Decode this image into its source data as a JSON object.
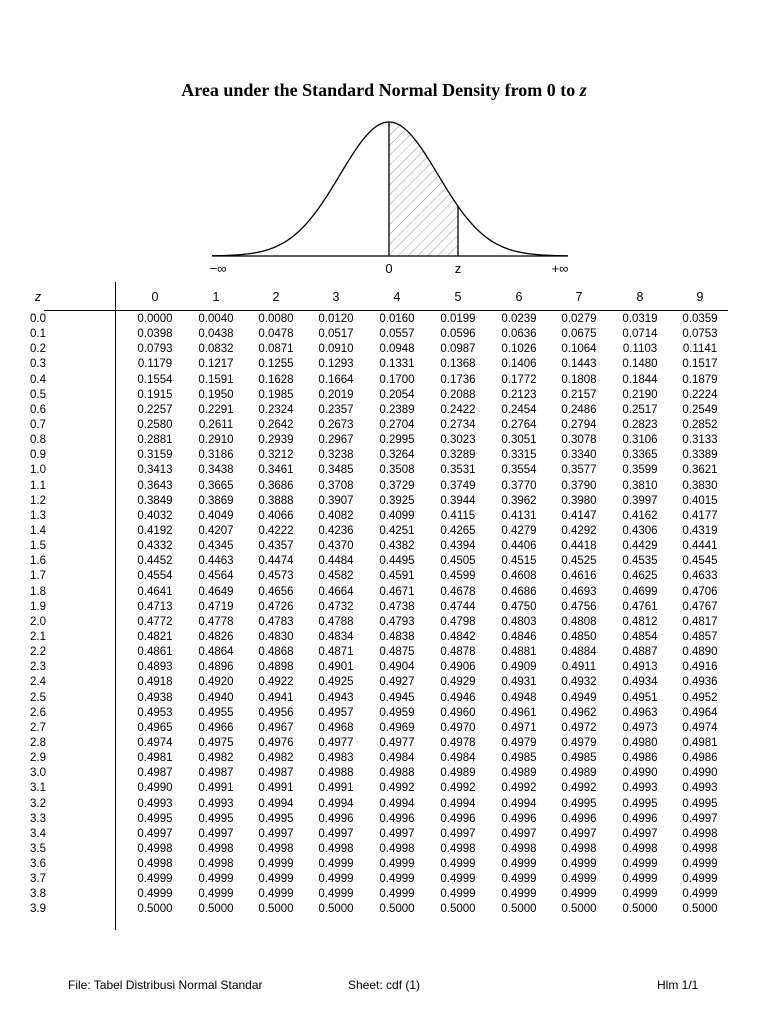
{
  "title": {
    "text": "Area under the Standard Normal Density from 0 to ",
    "var": "z"
  },
  "figure": {
    "labels": {
      "neg_inf": "−∞",
      "zero": "0",
      "z": "z",
      "pos_inf": "+∞"
    }
  },
  "table": {
    "z_header": "z",
    "columns": [
      "0",
      "1",
      "2",
      "3",
      "4",
      "5",
      "6",
      "7",
      "8",
      "9"
    ],
    "rows": [
      {
        "z": "0.0",
        "v": [
          "0.0000",
          "0.0040",
          "0.0080",
          "0.0120",
          "0.0160",
          "0.0199",
          "0.0239",
          "0.0279",
          "0.0319",
          "0.0359"
        ]
      },
      {
        "z": "0.1",
        "v": [
          "0.0398",
          "0.0438",
          "0.0478",
          "0.0517",
          "0.0557",
          "0.0596",
          "0.0636",
          "0.0675",
          "0.0714",
          "0.0753"
        ]
      },
      {
        "z": "0.2",
        "v": [
          "0.0793",
          "0.0832",
          "0.0871",
          "0.0910",
          "0.0948",
          "0.0987",
          "0.1026",
          "0.1064",
          "0.1103",
          "0.1141"
        ]
      },
      {
        "z": "0.3",
        "v": [
          "0.1179",
          "0.1217",
          "0.1255",
          "0.1293",
          "0.1331",
          "0.1368",
          "0.1406",
          "0.1443",
          "0.1480",
          "0.1517"
        ]
      },
      {
        "z": "0.4",
        "v": [
          "0.1554",
          "0.1591",
          "0.1628",
          "0.1664",
          "0.1700",
          "0.1736",
          "0.1772",
          "0.1808",
          "0.1844",
          "0.1879"
        ]
      },
      {
        "z": "0.5",
        "v": [
          "0.1915",
          "0.1950",
          "0.1985",
          "0.2019",
          "0.2054",
          "0.2088",
          "0.2123",
          "0.2157",
          "0.2190",
          "0.2224"
        ]
      },
      {
        "z": "0.6",
        "v": [
          "0.2257",
          "0.2291",
          "0.2324",
          "0.2357",
          "0.2389",
          "0.2422",
          "0.2454",
          "0.2486",
          "0.2517",
          "0.2549"
        ]
      },
      {
        "z": "0.7",
        "v": [
          "0.2580",
          "0.2611",
          "0.2642",
          "0.2673",
          "0.2704",
          "0.2734",
          "0.2764",
          "0.2794",
          "0.2823",
          "0.2852"
        ]
      },
      {
        "z": "0.8",
        "v": [
          "0.2881",
          "0.2910",
          "0.2939",
          "0.2967",
          "0.2995",
          "0.3023",
          "0.3051",
          "0.3078",
          "0.3106",
          "0.3133"
        ]
      },
      {
        "z": "0.9",
        "v": [
          "0.3159",
          "0.3186",
          "0.3212",
          "0.3238",
          "0.3264",
          "0.3289",
          "0.3315",
          "0.3340",
          "0.3365",
          "0.3389"
        ]
      },
      {
        "z": "1.0",
        "v": [
          "0.3413",
          "0.3438",
          "0.3461",
          "0.3485",
          "0.3508",
          "0.3531",
          "0.3554",
          "0.3577",
          "0.3599",
          "0.3621"
        ]
      },
      {
        "z": "1.1",
        "v": [
          "0.3643",
          "0.3665",
          "0.3686",
          "0.3708",
          "0.3729",
          "0.3749",
          "0.3770",
          "0.3790",
          "0.3810",
          "0.3830"
        ]
      },
      {
        "z": "1.2",
        "v": [
          "0.3849",
          "0.3869",
          "0.3888",
          "0.3907",
          "0.3925",
          "0.3944",
          "0.3962",
          "0.3980",
          "0.3997",
          "0.4015"
        ]
      },
      {
        "z": "1.3",
        "v": [
          "0.4032",
          "0.4049",
          "0.4066",
          "0.4082",
          "0.4099",
          "0.4115",
          "0.4131",
          "0.4147",
          "0.4162",
          "0.4177"
        ]
      },
      {
        "z": "1.4",
        "v": [
          "0.4192",
          "0.4207",
          "0.4222",
          "0.4236",
          "0.4251",
          "0.4265",
          "0.4279",
          "0.4292",
          "0.4306",
          "0.4319"
        ]
      },
      {
        "z": "1.5",
        "v": [
          "0.4332",
          "0.4345",
          "0.4357",
          "0.4370",
          "0.4382",
          "0.4394",
          "0.4406",
          "0.4418",
          "0.4429",
          "0.4441"
        ]
      },
      {
        "z": "1.6",
        "v": [
          "0.4452",
          "0.4463",
          "0.4474",
          "0.4484",
          "0.4495",
          "0.4505",
          "0.4515",
          "0.4525",
          "0.4535",
          "0.4545"
        ]
      },
      {
        "z": "1.7",
        "v": [
          "0.4554",
          "0.4564",
          "0.4573",
          "0.4582",
          "0.4591",
          "0.4599",
          "0.4608",
          "0.4616",
          "0.4625",
          "0.4633"
        ]
      },
      {
        "z": "1.8",
        "v": [
          "0.4641",
          "0.4649",
          "0.4656",
          "0.4664",
          "0.4671",
          "0.4678",
          "0.4686",
          "0.4693",
          "0.4699",
          "0.4706"
        ]
      },
      {
        "z": "1.9",
        "v": [
          "0.4713",
          "0.4719",
          "0.4726",
          "0.4732",
          "0.4738",
          "0.4744",
          "0.4750",
          "0.4756",
          "0.4761",
          "0.4767"
        ]
      },
      {
        "z": "2.0",
        "v": [
          "0.4772",
          "0.4778",
          "0.4783",
          "0.4788",
          "0.4793",
          "0.4798",
          "0.4803",
          "0.4808",
          "0.4812",
          "0.4817"
        ]
      },
      {
        "z": "2.1",
        "v": [
          "0.4821",
          "0.4826",
          "0.4830",
          "0.4834",
          "0.4838",
          "0.4842",
          "0.4846",
          "0.4850",
          "0.4854",
          "0.4857"
        ]
      },
      {
        "z": "2.2",
        "v": [
          "0.4861",
          "0.4864",
          "0.4868",
          "0.4871",
          "0.4875",
          "0.4878",
          "0.4881",
          "0.4884",
          "0.4887",
          "0.4890"
        ]
      },
      {
        "z": "2.3",
        "v": [
          "0.4893",
          "0.4896",
          "0.4898",
          "0.4901",
          "0.4904",
          "0.4906",
          "0.4909",
          "0.4911",
          "0.4913",
          "0.4916"
        ]
      },
      {
        "z": "2.4",
        "v": [
          "0.4918",
          "0.4920",
          "0.4922",
          "0.4925",
          "0.4927",
          "0.4929",
          "0.4931",
          "0.4932",
          "0.4934",
          "0.4936"
        ]
      },
      {
        "z": "2.5",
        "v": [
          "0.4938",
          "0.4940",
          "0.4941",
          "0.4943",
          "0.4945",
          "0.4946",
          "0.4948",
          "0.4949",
          "0.4951",
          "0.4952"
        ]
      },
      {
        "z": "2.6",
        "v": [
          "0.4953",
          "0.4955",
          "0.4956",
          "0.4957",
          "0.4959",
          "0.4960",
          "0.4961",
          "0.4962",
          "0.4963",
          "0.4964"
        ]
      },
      {
        "z": "2.7",
        "v": [
          "0.4965",
          "0.4966",
          "0.4967",
          "0.4968",
          "0.4969",
          "0.4970",
          "0.4971",
          "0.4972",
          "0.4973",
          "0.4974"
        ]
      },
      {
        "z": "2.8",
        "v": [
          "0.4974",
          "0.4975",
          "0.4976",
          "0.4977",
          "0.4977",
          "0.4978",
          "0.4979",
          "0.4979",
          "0.4980",
          "0.4981"
        ]
      },
      {
        "z": "2.9",
        "v": [
          "0.4981",
          "0.4982",
          "0.4982",
          "0.4983",
          "0.4984",
          "0.4984",
          "0.4985",
          "0.4985",
          "0.4986",
          "0.4986"
        ]
      },
      {
        "z": "3.0",
        "v": [
          "0.4987",
          "0.4987",
          "0.4987",
          "0.4988",
          "0.4988",
          "0.4989",
          "0.4989",
          "0.4989",
          "0.4990",
          "0.4990"
        ]
      },
      {
        "z": "3.1",
        "v": [
          "0.4990",
          "0.4991",
          "0.4991",
          "0.4991",
          "0.4992",
          "0.4992",
          "0.4992",
          "0.4992",
          "0.4993",
          "0.4993"
        ]
      },
      {
        "z": "3.2",
        "v": [
          "0.4993",
          "0.4993",
          "0.4994",
          "0.4994",
          "0.4994",
          "0.4994",
          "0.4994",
          "0.4995",
          "0.4995",
          "0.4995"
        ]
      },
      {
        "z": "3.3",
        "v": [
          "0.4995",
          "0.4995",
          "0.4995",
          "0.4996",
          "0.4996",
          "0.4996",
          "0.4996",
          "0.4996",
          "0.4996",
          "0.4997"
        ]
      },
      {
        "z": "3.4",
        "v": [
          "0.4997",
          "0.4997",
          "0.4997",
          "0.4997",
          "0.4997",
          "0.4997",
          "0.4997",
          "0.4997",
          "0.4997",
          "0.4998"
        ]
      },
      {
        "z": "3.5",
        "v": [
          "0.4998",
          "0.4998",
          "0.4998",
          "0.4998",
          "0.4998",
          "0.4998",
          "0.4998",
          "0.4998",
          "0.4998",
          "0.4998"
        ]
      },
      {
        "z": "3.6",
        "v": [
          "0.4998",
          "0.4998",
          "0.4999",
          "0.4999",
          "0.4999",
          "0.4999",
          "0.4999",
          "0.4999",
          "0.4999",
          "0.4999"
        ]
      },
      {
        "z": "3.7",
        "v": [
          "0.4999",
          "0.4999",
          "0.4999",
          "0.4999",
          "0.4999",
          "0.4999",
          "0.4999",
          "0.4999",
          "0.4999",
          "0.4999"
        ]
      },
      {
        "z": "3.8",
        "v": [
          "0.4999",
          "0.4999",
          "0.4999",
          "0.4999",
          "0.4999",
          "0.4999",
          "0.4999",
          "0.4999",
          "0.4999",
          "0.4999"
        ]
      },
      {
        "z": "3.9",
        "v": [
          "0.5000",
          "0.5000",
          "0.5000",
          "0.5000",
          "0.5000",
          "0.5000",
          "0.5000",
          "0.5000",
          "0.5000",
          "0.5000"
        ]
      }
    ]
  },
  "footer": {
    "file": "File: Tabel Distribusi Normal Standar",
    "sheet": "Sheet: cdf (1)",
    "page": "Hlm 1/1"
  }
}
